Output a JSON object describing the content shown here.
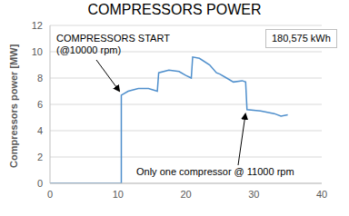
{
  "chart_data": {
    "type": "line",
    "title": "COMPRESSORS POWER",
    "y_label": "Compressors power [MW]",
    "x": [
      0,
      10.5,
      10.5,
      11.5,
      13,
      14.5,
      15.8,
      16,
      17.5,
      19,
      20,
      20.8,
      21,
      22,
      23.5,
      24.5,
      25,
      26,
      27,
      28.3,
      28.8,
      29,
      31,
      33,
      34,
      35
    ],
    "values": [
      0,
      0,
      6.7,
      7.0,
      7.2,
      7.2,
      7.0,
      8.4,
      8.6,
      8.5,
      8.2,
      8.0,
      9.6,
      9.5,
      9.0,
      8.4,
      8.3,
      8.0,
      7.7,
      7.8,
      7.7,
      5.6,
      5.5,
      5.3,
      5.1,
      5.2
    ],
    "color": "#4f8fcc",
    "xlim": [
      0,
      40
    ],
    "xticks": [
      0,
      10,
      20,
      30,
      40
    ],
    "ylim": [
      0,
      12
    ],
    "yticks": [
      0,
      2,
      4,
      6,
      8,
      10,
      12
    ],
    "grid": true,
    "annotations": [
      [
        "COMPRESSORS START",
        "(@10000 rpm)"
      ],
      [
        "Only one compressor @ 11000 rpm"
      ],
      [
        "180,575 kWh"
      ]
    ]
  }
}
